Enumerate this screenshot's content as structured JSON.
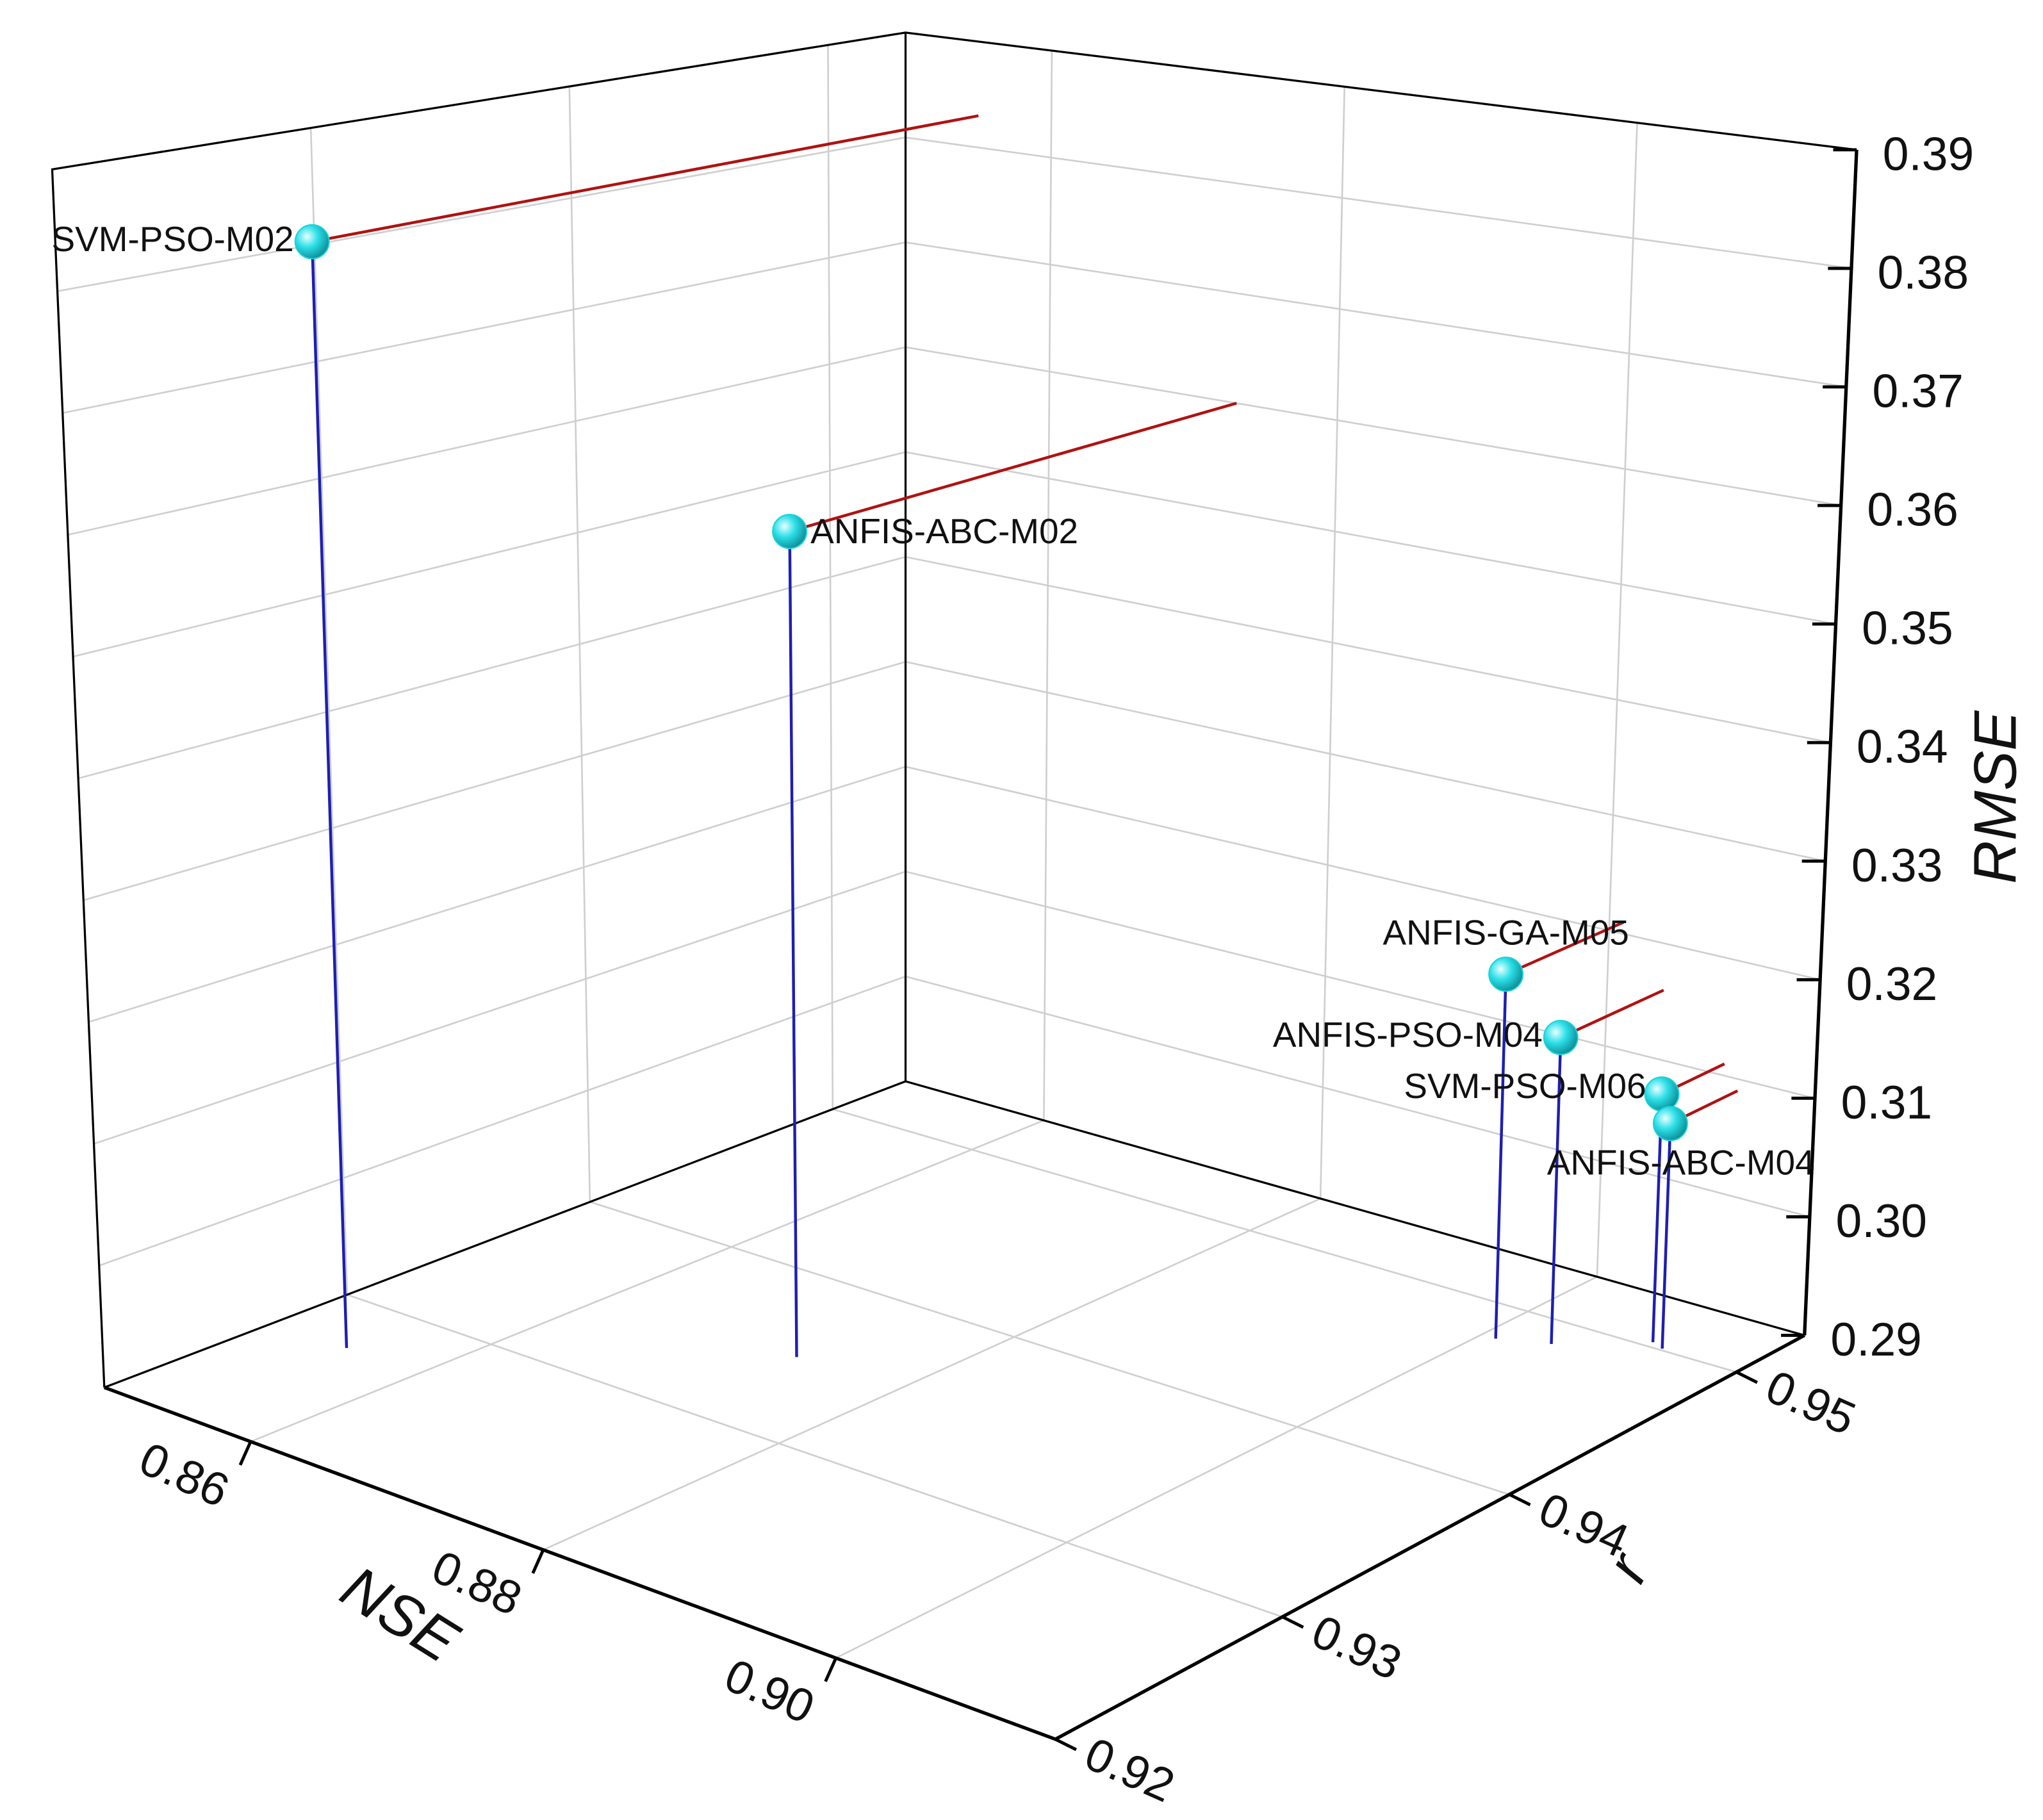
{
  "chart_data": {
    "type": "scatter3d",
    "xlabel": "NSE",
    "ylabel": "r",
    "zlabel": "RMSE",
    "labels": [
      "SVM-PSO-M02",
      "ANFIS-ABC-M02",
      "ANFIS-GA-M05",
      "ANFIS-PSO-M04",
      "SVM-PSO-M06",
      "ANFIS-ABC-M04"
    ],
    "x": [
      0.855,
      0.873,
      0.901,
      0.904,
      0.9085,
      0.9095
    ],
    "y": [
      0.927,
      0.935,
      0.948,
      0.9486,
      0.9503,
      0.9501
    ],
    "z": [
      0.383,
      0.36,
      0.321,
      0.316,
      0.311,
      0.309
    ],
    "xlim": [
      0.85,
      0.915
    ],
    "xticks": [
      0.86,
      0.88,
      {
        "value": 0.9,
        "label": "0.90"
      }
    ],
    "ylim": [
      0.92,
      0.953
    ],
    "yticks": [
      0.92,
      0.93,
      0.94,
      0.95
    ],
    "zlim": [
      0.29,
      0.39
    ],
    "zticks": [
      0.29,
      {
        "value": 0.3,
        "label": "0.30"
      },
      0.31,
      0.32,
      0.33,
      0.34,
      0.35,
      0.36,
      0.37,
      0.38,
      0.39
    ],
    "grid": true,
    "marker_color": "#19d3dc",
    "stem_color": "#1f1fb0",
    "projection_color": "#b01212"
  }
}
